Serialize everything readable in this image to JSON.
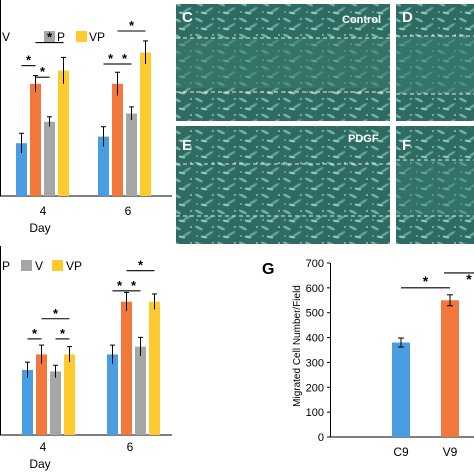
{
  "chart_data": [
    {
      "type": "bar",
      "panel": "A",
      "legend": [
        "V",
        "P",
        "VP"
      ],
      "legend_visible": [
        "V",
        "P",
        "VP"
      ],
      "categories": [
        "4",
        "6"
      ],
      "xlabel": "Day",
      "ylabel": "",
      "ylim": [
        0,
        1
      ],
      "colors": [
        "#4a9de0",
        "#f2773a",
        "#a6a6a6",
        "#fecb2e"
      ],
      "series": [
        {
          "values": [
            0.32,
            0.36
          ],
          "errors": [
            0.06,
            0.06
          ]
        },
        {
          "values": [
            0.68,
            0.68
          ],
          "errors": [
            0.05,
            0.07
          ]
        },
        {
          "values": [
            0.45,
            0.5
          ],
          "errors": [
            0.03,
            0.04
          ]
        },
        {
          "values": [
            0.76,
            0.87
          ],
          "errors": [
            0.08,
            0.07
          ]
        }
      ],
      "annotations": [
        "*",
        "*",
        "*",
        "*",
        "*",
        "*"
      ],
      "significance": [
        {
          "group": 0,
          "from": 0,
          "to": 1,
          "level": 0.79,
          "label": "*"
        },
        {
          "group": 0,
          "from": 1,
          "to": 2,
          "level": 0.72,
          "label": "*"
        },
        {
          "group": 0,
          "from": 1,
          "to": 3,
          "level": 0.93,
          "label": "*"
        },
        {
          "group": 1,
          "from": 0,
          "to": 1,
          "level": 0.8,
          "label": "*"
        },
        {
          "group": 1,
          "from": 1,
          "to": 2,
          "level": 0.8,
          "label": "*"
        },
        {
          "group": 1,
          "from": 1,
          "to": 3,
          "level": 1.0,
          "label": "*"
        }
      ]
    },
    {
      "type": "bar",
      "panel": "B",
      "legend": [
        "P",
        "V",
        "VP"
      ],
      "categories": [
        "4",
        "6"
      ],
      "xlabel": "Day",
      "ylabel": "",
      "ylim": [
        0,
        1
      ],
      "colors": [
        "#4a9de0",
        "#f2773a",
        "#a6a6a6",
        "#fecb2e"
      ],
      "series": [
        {
          "values": [
            0.42,
            0.52
          ],
          "errors": [
            0.05,
            0.06
          ]
        },
        {
          "values": [
            0.52,
            0.86
          ],
          "errors": [
            0.06,
            0.06
          ]
        },
        {
          "values": [
            0.41,
            0.57
          ],
          "errors": [
            0.04,
            0.06
          ]
        },
        {
          "values": [
            0.52,
            0.86
          ],
          "errors": [
            0.05,
            0.05
          ]
        }
      ],
      "annotations": [
        "*",
        "*",
        "*",
        "*",
        "*",
        "*"
      ],
      "significance": [
        {
          "group": 0,
          "from": 0,
          "to": 1,
          "level": 0.62,
          "label": "*"
        },
        {
          "group": 0,
          "from": 1,
          "to": 3,
          "level": 0.75,
          "label": "*"
        },
        {
          "group": 0,
          "from": 2,
          "to": 3,
          "level": 0.62,
          "label": "*"
        },
        {
          "group": 1,
          "from": 0,
          "to": 1,
          "level": 0.93,
          "label": "*"
        },
        {
          "group": 1,
          "from": 1,
          "to": 2,
          "level": 0.93,
          "label": "*"
        },
        {
          "group": 1,
          "from": 1,
          "to": 3,
          "level": 1.06,
          "label": "*"
        }
      ]
    },
    {
      "type": "bar",
      "panel": "G",
      "categories": [
        "C9",
        "V9"
      ],
      "xlabel": "",
      "ylabel": "Migrated Cell Number/Field",
      "ylim": [
        0,
        700
      ],
      "yticks": [
        0,
        100,
        200,
        300,
        400,
        500,
        600,
        700
      ],
      "colors": [
        "#4a9de0",
        "#f2773a"
      ],
      "values": [
        380,
        550
      ],
      "errors": [
        18,
        22
      ],
      "annotations": [
        "*",
        "*"
      ]
    }
  ],
  "panels": {
    "a": {
      "axis_labels": [
        "4",
        "6"
      ],
      "xlabel": "Day"
    },
    "b": {
      "axis_labels": [
        "4",
        "6"
      ],
      "xlabel": "Day"
    },
    "g": {
      "letter": "G"
    },
    "micrographs": {
      "c": "C",
      "d": "D",
      "e": "E",
      "f": "F",
      "control": "Control",
      "pdgf": "PDGF"
    }
  },
  "colors": {
    "blue": "#4a9de0",
    "orange": "#f2773a",
    "gray": "#a6a6a6",
    "yellow": "#fecb2e",
    "micro_base": "#2f6b63"
  }
}
